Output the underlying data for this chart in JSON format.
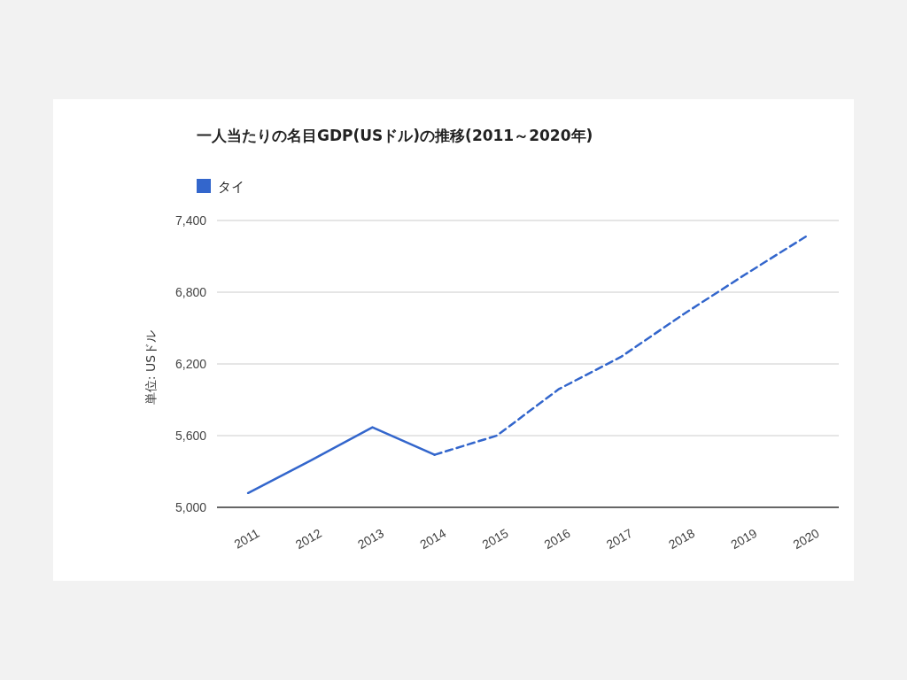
{
  "chart_data": {
    "type": "line",
    "title": "一人当たりの名目GDP(USドル)の推移(2011～2020年)",
    "ylabel": "単位: USドル",
    "categories": [
      "2011",
      "2012",
      "2013",
      "2014",
      "2015",
      "2016",
      "2017",
      "2018",
      "2019",
      "2020"
    ],
    "series": [
      {
        "name": "タイ",
        "color": "#3366cc",
        "line_style": "solid",
        "values": [
          5120,
          5390,
          5670,
          5440,
          null,
          null,
          null,
          null,
          null,
          null
        ]
      },
      {
        "color": "#3366cc",
        "line_style": "dashed",
        "values": [
          null,
          null,
          null,
          5440,
          5600,
          5990,
          6260,
          6615,
          6950,
          7275
        ]
      }
    ],
    "ylim": [
      5000,
      7400
    ],
    "yticks": [
      {
        "value": 5000,
        "label": "5,000"
      },
      {
        "value": 5600,
        "label": "5,600"
      },
      {
        "value": 6200,
        "label": "6,200"
      },
      {
        "value": 6800,
        "label": "6,800"
      },
      {
        "value": 7400,
        "label": "7,400"
      }
    ],
    "grid": "y",
    "legend": "top left",
    "marker": "none"
  }
}
